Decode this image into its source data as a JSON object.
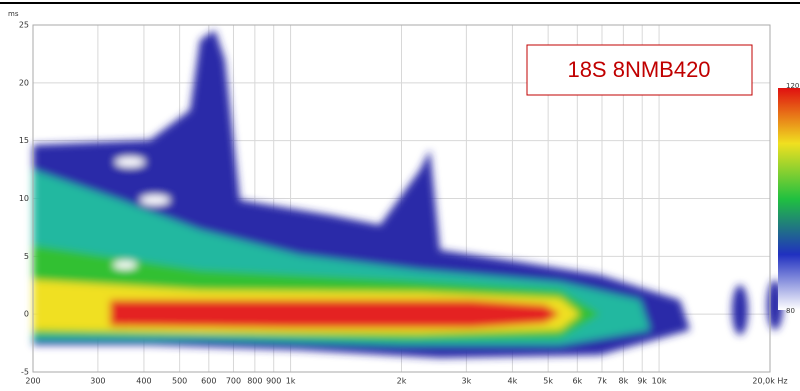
{
  "chart_data": {
    "type": "spectrogram",
    "annotation": "18S 8NMB420",
    "y_label": "ms",
    "xlim": [
      200,
      20000
    ],
    "xlog": true,
    "xticks": [
      200,
      300,
      400,
      500,
      600,
      700,
      800,
      900,
      {
        "value": 1000,
        "label": "1k"
      },
      {
        "value": 2000,
        "label": "2k"
      },
      {
        "value": 3000,
        "label": "3k"
      },
      {
        "value": 4000,
        "label": "4k"
      },
      {
        "value": 5000,
        "label": "5k"
      },
      {
        "value": 6000,
        "label": "6k"
      },
      {
        "value": 7000,
        "label": "7k"
      },
      {
        "value": 8000,
        "label": "8k"
      },
      {
        "value": 9000,
        "label": "9k"
      },
      {
        "value": 10000,
        "label": "10k"
      },
      {
        "value": 20000,
        "label": "20,0k Hz"
      }
    ],
    "ylim": [
      -5,
      25
    ],
    "yticks": [
      -5,
      0,
      5,
      10,
      15,
      20,
      25
    ],
    "colorbar_ticks": [
      120,
      80
    ],
    "grid": true
  }
}
